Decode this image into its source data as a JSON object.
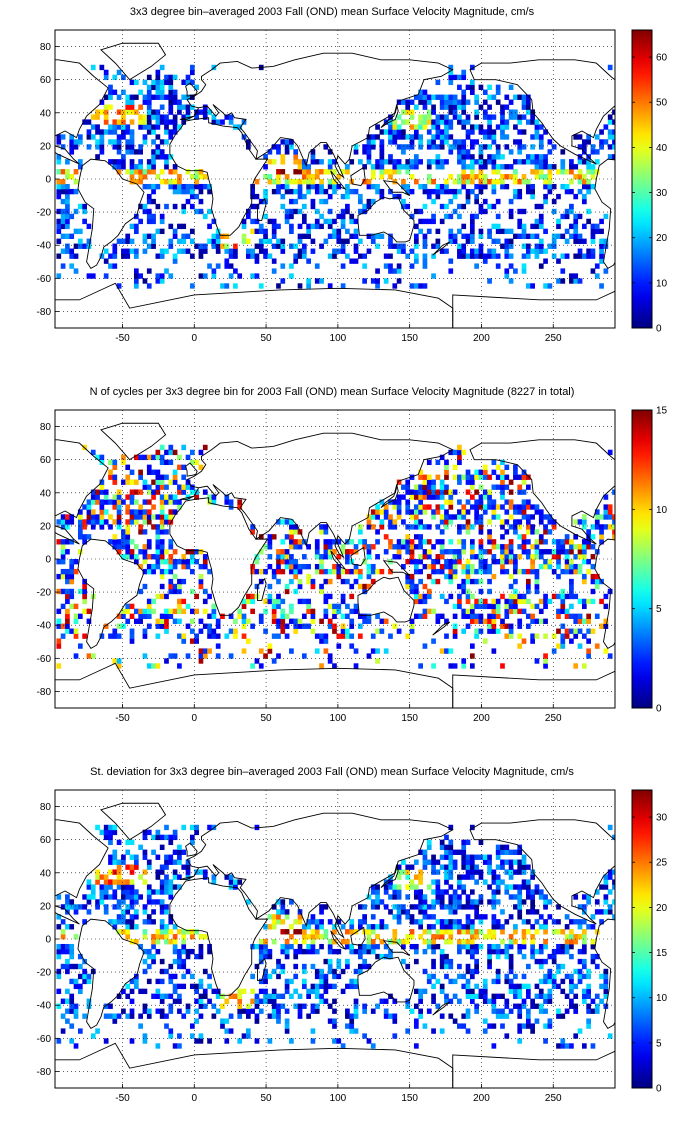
{
  "panels": [
    {
      "title": "3x3 degree bin–averaged 2003 Fall (OND) mean Surface Velocity Magnitude, cm/s",
      "colorbar_ticks": [
        "0",
        "10",
        "20",
        "30",
        "40",
        "50",
        "60"
      ],
      "colorbar_max": 66
    },
    {
      "title": "N of cycles per 3x3 degree bin for 2003 Fall (OND) mean Surface Velocity Magnitude (8227 in total)",
      "colorbar_ticks": [
        "0",
        "5",
        "10",
        "15"
      ],
      "colorbar_max": 15
    },
    {
      "title": "St. deviation for 3x3 degree bin–averaged 2003 Fall (OND) mean Surface Velocity Magnitude, cm/s",
      "colorbar_ticks": [
        "0",
        "5",
        "10",
        "15",
        "20",
        "25",
        "30"
      ],
      "colorbar_max": 33
    }
  ],
  "chart_data": [
    {
      "type": "heatmap",
      "title": "3x3 degree bin–averaged 2003 Fall (OND) mean Surface Velocity Magnitude, cm/s",
      "x_ticks": [
        "-50",
        "0",
        "50",
        "100",
        "150",
        "200",
        "250"
      ],
      "y_ticks": [
        "80",
        "60",
        "40",
        "20",
        "0",
        "-20",
        "-40",
        "-60",
        "-80"
      ],
      "xlim": [
        -97,
        293
      ],
      "ylim": [
        -90,
        90
      ],
      "colorbar": {
        "min": 0,
        "max": 66,
        "ticks": [
          0,
          10,
          20,
          30,
          40,
          50,
          60
        ]
      },
      "grid": true
    },
    {
      "type": "heatmap",
      "title": "N of cycles per 3x3 degree bin for 2003 Fall (OND) mean Surface Velocity Magnitude (8227 in total)",
      "x_ticks": [
        "-50",
        "0",
        "50",
        "100",
        "150",
        "200",
        "250"
      ],
      "y_ticks": [
        "80",
        "60",
        "40",
        "20",
        "0",
        "-20",
        "-40",
        "-60",
        "-80"
      ],
      "xlim": [
        -97,
        293
      ],
      "ylim": [
        -90,
        90
      ],
      "colorbar": {
        "min": 0,
        "max": 15,
        "ticks": [
          0,
          5,
          10,
          15
        ]
      },
      "grid": true
    },
    {
      "type": "heatmap",
      "title": "St. deviation for 3x3 degree bin–averaged 2003 Fall (OND) mean Surface Velocity Magnitude, cm/s",
      "x_ticks": [
        "-50",
        "0",
        "50",
        "100",
        "150",
        "200",
        "250"
      ],
      "y_ticks": [
        "80",
        "60",
        "40",
        "20",
        "0",
        "-20",
        "-40",
        "-60",
        "-80"
      ],
      "xlim": [
        -97,
        293
      ],
      "ylim": [
        -90,
        90
      ],
      "colorbar": {
        "min": 0,
        "max": 33,
        "ticks": [
          0,
          5,
          10,
          15,
          20,
          25,
          30
        ]
      },
      "grid": true
    }
  ]
}
